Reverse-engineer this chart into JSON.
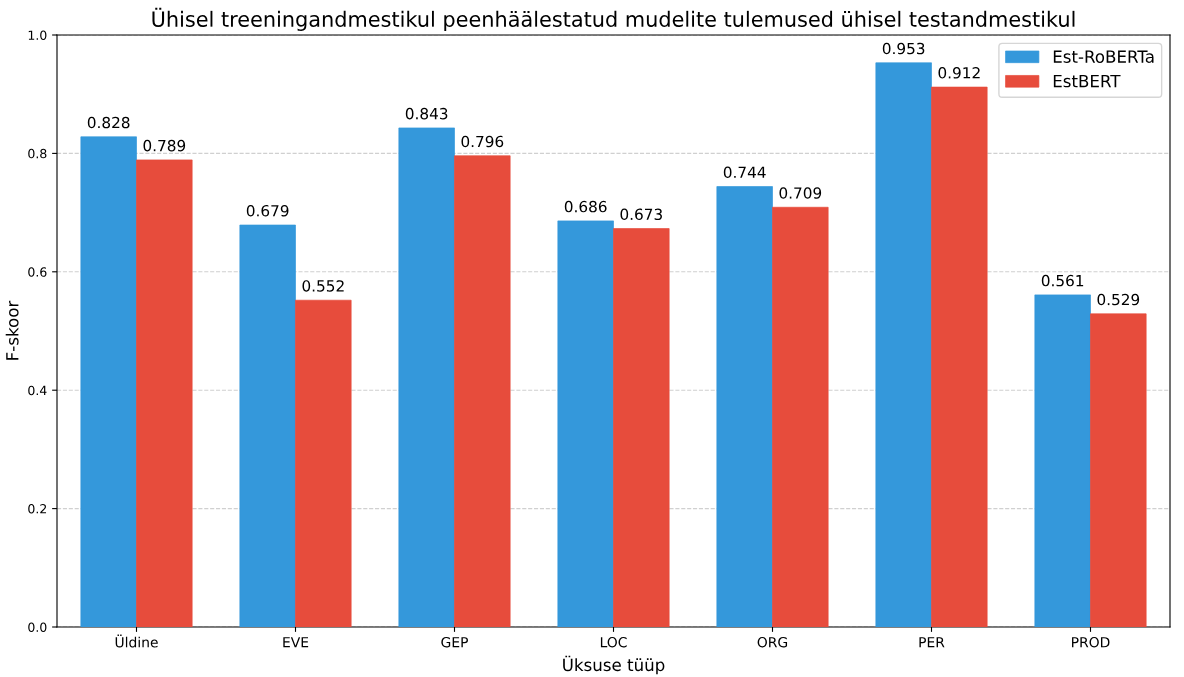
{
  "chart_data": {
    "type": "bar",
    "title": "Ühisel treeningandmestikul peenhäälestatud mudelite tulemused ühisel testandmestikul",
    "xlabel": "Üksuse tüüp",
    "ylabel": "F-skoor",
    "categories": [
      "Üldine",
      "EVE",
      "GEP",
      "LOC",
      "ORG",
      "PER",
      "PROD"
    ],
    "series": [
      {
        "name": "Est-RoBERTa",
        "color": "#3498db",
        "values": [
          0.828,
          0.679,
          0.843,
          0.686,
          0.744,
          0.953,
          0.561
        ]
      },
      {
        "name": "EstBERT",
        "color": "#e74c3c",
        "values": [
          0.789,
          0.552,
          0.796,
          0.673,
          0.709,
          0.912,
          0.529
        ]
      }
    ],
    "ylim": [
      0,
      1.0
    ],
    "yticks": [
      {
        "value": 0,
        "label": "0.0"
      },
      0.2,
      0.4,
      0.6,
      0.8,
      {
        "value": 1.0,
        "label": "1.0"
      }
    ],
    "grid": "y",
    "legend": "top right",
    "data_labels": true
  }
}
